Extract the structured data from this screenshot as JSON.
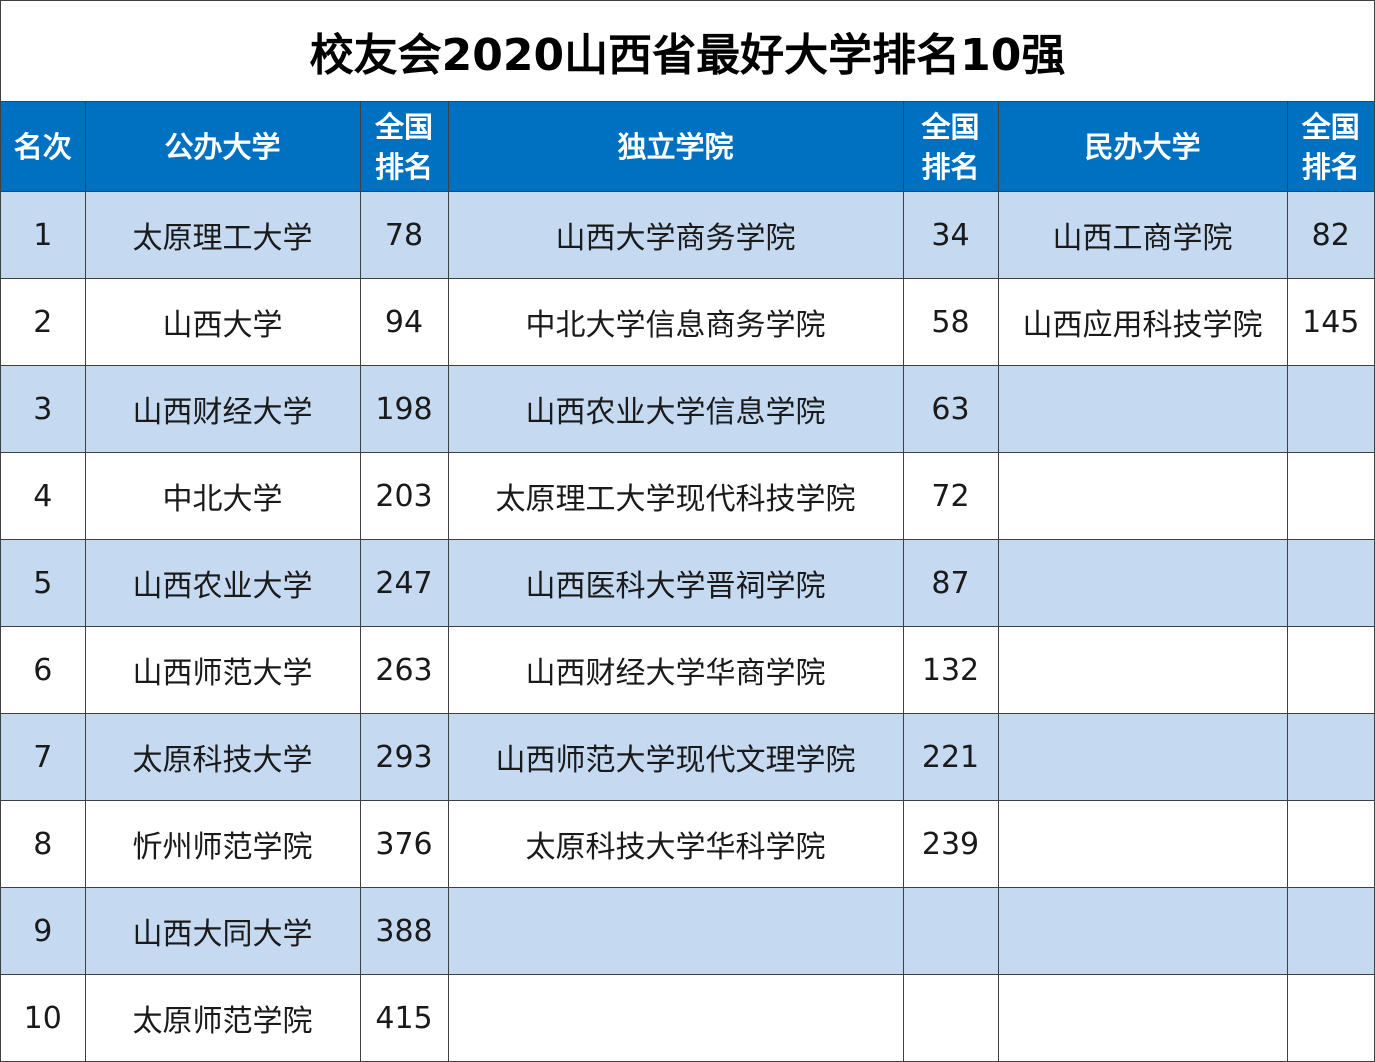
{
  "title": "校友会2020山西省最好大学排名10强",
  "colors": {
    "header_bg": "#0070c0",
    "header_text": "#ffffff",
    "row_shade": "#c5d9f1",
    "row_plain": "#ffffff"
  },
  "headers": {
    "rank": "名次",
    "public": "公办大学",
    "national_rank_1": "全国排名",
    "independent": "独立学院",
    "national_rank_2": "全国排名",
    "private": "民办大学",
    "national_rank_3": "全国排名"
  },
  "rows": [
    {
      "rank": "1",
      "public": "太原理工大学",
      "public_nr": "78",
      "independent": "山西大学商务学院",
      "independent_nr": "34",
      "private": "山西工商学院",
      "private_nr": "82"
    },
    {
      "rank": "2",
      "public": "山西大学",
      "public_nr": "94",
      "independent": "中北大学信息商务学院",
      "independent_nr": "58",
      "private": "山西应用科技学院",
      "private_nr": "145"
    },
    {
      "rank": "3",
      "public": "山西财经大学",
      "public_nr": "198",
      "independent": "山西农业大学信息学院",
      "independent_nr": "63",
      "private": "",
      "private_nr": ""
    },
    {
      "rank": "4",
      "public": "中北大学",
      "public_nr": "203",
      "independent": "太原理工大学现代科技学院",
      "independent_nr": "72",
      "private": "",
      "private_nr": ""
    },
    {
      "rank": "5",
      "public": "山西农业大学",
      "public_nr": "247",
      "independent": "山西医科大学晋祠学院",
      "independent_nr": "87",
      "private": "",
      "private_nr": ""
    },
    {
      "rank": "6",
      "public": "山西师范大学",
      "public_nr": "263",
      "independent": "山西财经大学华商学院",
      "independent_nr": "132",
      "private": "",
      "private_nr": ""
    },
    {
      "rank": "7",
      "public": "太原科技大学",
      "public_nr": "293",
      "independent": "山西师范大学现代文理学院",
      "independent_nr": "221",
      "private": "",
      "private_nr": ""
    },
    {
      "rank": "8",
      "public": "忻州师范学院",
      "public_nr": "376",
      "independent": "太原科技大学华科学院",
      "independent_nr": "239",
      "private": "",
      "private_nr": ""
    },
    {
      "rank": "9",
      "public": "山西大同大学",
      "public_nr": "388",
      "independent": "",
      "independent_nr": "",
      "private": "",
      "private_nr": ""
    },
    {
      "rank": "10",
      "public": "太原师范学院",
      "public_nr": "415",
      "independent": "",
      "independent_nr": "",
      "private": "",
      "private_nr": ""
    }
  ]
}
